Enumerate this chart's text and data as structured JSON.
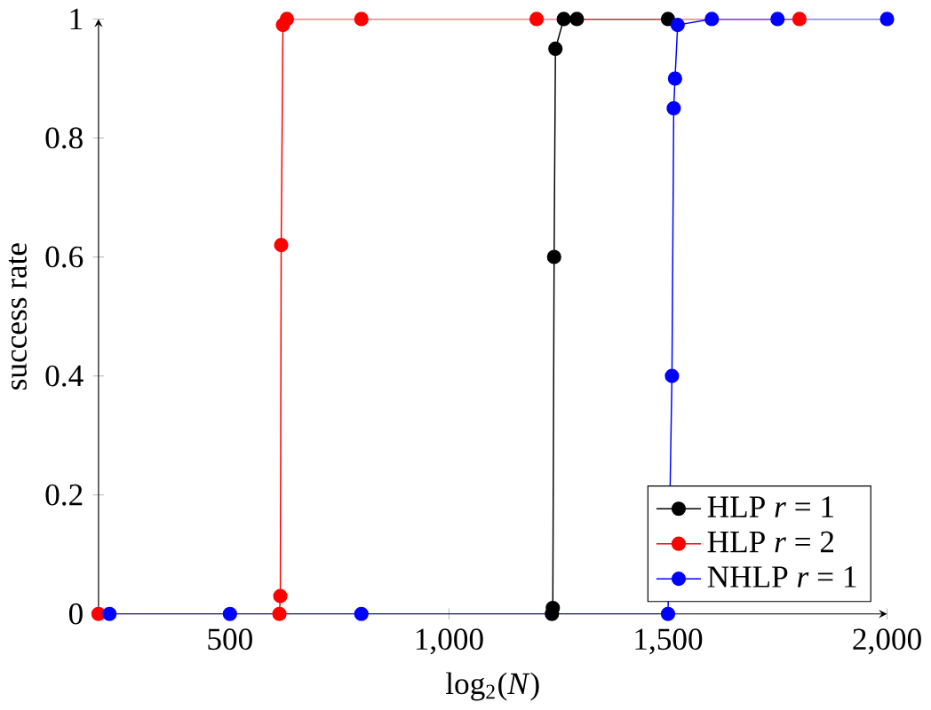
{
  "chart_data": {
    "type": "line",
    "xlabel": "log$_{2}$(*N*)",
    "ylabel": "success rate",
    "xlim": [
      200,
      2000
    ],
    "ylim": [
      0,
      1
    ],
    "xticks": [
      500,
      {
        "value": 1000,
        "label": "1,000"
      },
      {
        "value": 1500,
        "label": "1,500"
      },
      {
        "value": 2000,
        "label": "2,000"
      }
    ],
    "yticks": [
      0,
      0.2,
      0.4,
      0.6,
      0.8,
      1
    ],
    "legend": "bottom right",
    "marker": "circle",
    "line_style": "solid",
    "grid": false,
    "series": [
      {
        "name": "HLP *r* = 1",
        "color": "#000000",
        "x": [
          1235,
          1237,
          1240,
          1243,
          1262,
          1292,
          1500
        ],
        "values": [
          0,
          0.01,
          0.6,
          0.95,
          1,
          1,
          1
        ]
      },
      {
        "name": "HLP *r* = 2",
        "color": "#ff0000",
        "x": [
          200,
          613,
          615,
          617,
          621,
          630,
          800,
          1200,
          1800
        ],
        "values": [
          0,
          0,
          0.03,
          0.62,
          0.99,
          1,
          1,
          1,
          1
        ]
      },
      {
        "name": "NHLP *r* = 1",
        "color": "#0000ff",
        "x": [
          225,
          500,
          800,
          1500,
          1509,
          1513,
          1516,
          1522,
          1600,
          1750,
          2000
        ],
        "values": [
          0,
          0,
          0,
          0,
          0.4,
          0.85,
          0.9,
          0.99,
          1,
          1,
          1
        ]
      }
    ]
  }
}
